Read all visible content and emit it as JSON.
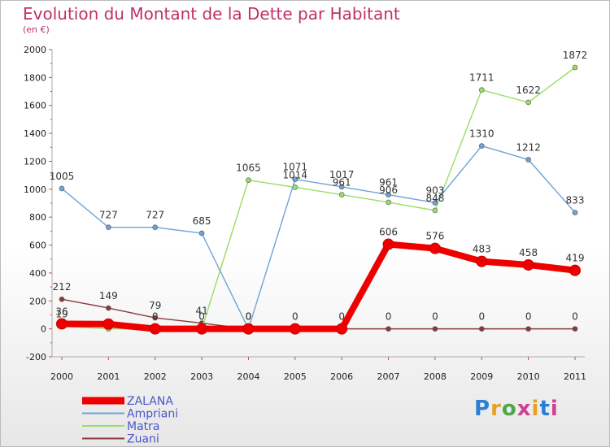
{
  "title": "Evolution du Montant de la Dette par Habitant",
  "subtitle": "(en €)",
  "logo_text": "Proxiti",
  "logo_colors": [
    "#2a7fd4",
    "#e8a020",
    "#4aa84a",
    "#d04090",
    "#e8a020",
    "#2a7fd4",
    "#d04090"
  ],
  "chart_data": {
    "type": "line",
    "x": [
      "2000",
      "2001",
      "2002",
      "2003",
      "2004",
      "2005",
      "2006",
      "2007",
      "2008",
      "2009",
      "2010",
      "2011"
    ],
    "ylim": [
      -200,
      2000
    ],
    "yticks": [
      -200,
      0,
      200,
      400,
      600,
      800,
      1000,
      1200,
      1400,
      1600,
      1800,
      2000
    ],
    "grid": false,
    "legend_placement": "bottom-left",
    "series": [
      {
        "name": "ZALANA",
        "color": "#ee0000",
        "values": [
          36,
          34,
          0,
          0,
          0,
          0,
          0,
          606,
          576,
          483,
          458,
          419
        ],
        "labels": [
          "36",
          "",
          "",
          "",
          "",
          "",
          "",
          "606",
          "576",
          "483",
          "458",
          "419"
        ]
      },
      {
        "name": "Ampriani",
        "color": "#6fa3d6",
        "values": [
          1005,
          727,
          727,
          685,
          0,
          1071,
          1017,
          961,
          903,
          1310,
          1212,
          833
        ],
        "labels": [
          "1005",
          "727",
          "727",
          "685",
          "0",
          "1071",
          "1017",
          "961",
          "903",
          "1310",
          "1212",
          "833"
        ]
      },
      {
        "name": "Matra",
        "color": "#99dd66",
        "values": [
          19,
          0,
          0,
          0,
          1065,
          1014,
          961,
          906,
          848,
          1711,
          1622,
          1872
        ],
        "labels": [
          "19",
          "",
          "0",
          "0",
          "1065",
          "1014",
          "961",
          "906",
          "848",
          "1711",
          "1622",
          "1872"
        ]
      },
      {
        "name": "Zuani",
        "color": "#8b3a3a",
        "values": [
          212,
          149,
          79,
          41,
          0,
          0,
          0,
          0,
          0,
          0,
          0,
          0
        ],
        "labels": [
          "212",
          "149",
          "79",
          "41",
          "0",
          "0",
          "0",
          "0",
          "0",
          "0",
          "0",
          "0"
        ]
      }
    ]
  }
}
